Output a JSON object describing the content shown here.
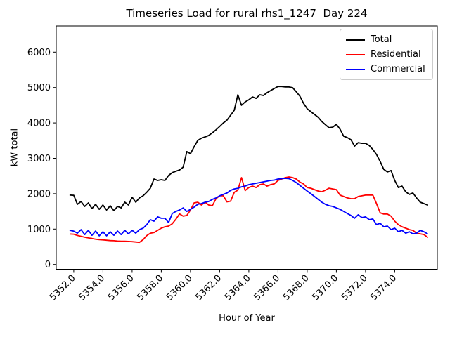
{
  "chart_data": {
    "type": "line",
    "title": "Timeseries Load for rural rhs1_1247  Day 224",
    "xlabel": "Hour of Year",
    "ylabel": "kW total",
    "grid": false,
    "legend_position": "upper right",
    "xlim": [
      5350.8,
      5376.92
    ],
    "ylim": [
      -135,
      6740
    ],
    "x_ticks": [
      5352,
      5354,
      5356,
      5358,
      5360,
      5362,
      5364,
      5366,
      5368,
      5370,
      5372,
      5374
    ],
    "x_tick_labels": [
      "5352.0",
      "5354.0",
      "5356.0",
      "5358.0",
      "5360.0",
      "5362.0",
      "5364.0",
      "5366.0",
      "5368.0",
      "5370.0",
      "5372.0",
      "5374.0"
    ],
    "y_ticks": [
      0,
      1000,
      2000,
      3000,
      4000,
      5000,
      6000
    ],
    "y_tick_labels": [
      "0",
      "1000",
      "2000",
      "3000",
      "4000",
      "5000",
      "6000"
    ],
    "x_start": 5351.75,
    "x_step": 0.25,
    "series": [
      {
        "name": "Total",
        "color": "#000000",
        "values": [
          1960,
          1955,
          1700,
          1780,
          1640,
          1740,
          1580,
          1700,
          1560,
          1680,
          1540,
          1660,
          1520,
          1640,
          1600,
          1760,
          1680,
          1900,
          1760,
          1880,
          1940,
          2040,
          2155,
          2415,
          2375,
          2395,
          2375,
          2515,
          2595,
          2635,
          2670,
          2750,
          3190,
          3130,
          3330,
          3505,
          3570,
          3605,
          3645,
          3720,
          3805,
          3900,
          4000,
          4080,
          4220,
          4360,
          4795,
          4500,
          4595,
          4655,
          4735,
          4695,
          4795,
          4775,
          4855,
          4915,
          4975,
          5030,
          5030,
          5015,
          5015,
          4995,
          4880,
          4755,
          4555,
          4400,
          4320,
          4240,
          4160,
          4040,
          3950,
          3865,
          3880,
          3960,
          3825,
          3625,
          3585,
          3525,
          3345,
          3445,
          3425,
          3425,
          3365,
          3250,
          3110,
          2910,
          2690,
          2615,
          2655,
          2375,
          2175,
          2215,
          2055,
          1980,
          2020,
          1880,
          1760,
          1720,
          1680
        ]
      },
      {
        "name": "Residential",
        "color": "#ff0000",
        "values": [
          860,
          855,
          820,
          795,
          770,
          750,
          735,
          715,
          700,
          695,
          685,
          675,
          670,
          660,
          655,
          655,
          650,
          645,
          635,
          625,
          700,
          815,
          880,
          900,
          965,
          1025,
          1065,
          1085,
          1150,
          1280,
          1430,
          1365,
          1385,
          1540,
          1740,
          1760,
          1680,
          1760,
          1680,
          1660,
          1860,
          1940,
          1940,
          1770,
          1790,
          2040,
          2100,
          2455,
          2090,
          2175,
          2215,
          2175,
          2255,
          2275,
          2215,
          2255,
          2280,
          2375,
          2415,
          2455,
          2475,
          2455,
          2415,
          2330,
          2275,
          2175,
          2155,
          2115,
          2075,
          2055,
          2100,
          2155,
          2135,
          2115,
          1960,
          1920,
          1880,
          1860,
          1860,
          1920,
          1940,
          1960,
          1960,
          1960,
          1720,
          1460,
          1425,
          1425,
          1365,
          1225,
          1125,
          1065,
          1025,
          985,
          965,
          885,
          865,
          845,
          770
        ]
      },
      {
        "name": "Commercial",
        "color": "#0000ff",
        "values": [
          965,
          940,
          885,
          985,
          845,
          965,
          825,
          945,
          810,
          925,
          810,
          925,
          825,
          945,
          845,
          965,
          865,
          965,
          885,
          985,
          1025,
          1125,
          1265,
          1225,
          1345,
          1305,
          1305,
          1185,
          1440,
          1500,
          1540,
          1600,
          1500,
          1560,
          1620,
          1700,
          1720,
          1760,
          1780,
          1840,
          1880,
          1940,
          1980,
          2020,
          2095,
          2135,
          2155,
          2195,
          2215,
          2255,
          2275,
          2295,
          2315,
          2335,
          2355,
          2375,
          2385,
          2415,
          2425,
          2435,
          2425,
          2375,
          2315,
          2235,
          2155,
          2075,
          2000,
          1920,
          1840,
          1760,
          1700,
          1660,
          1640,
          1600,
          1560,
          1500,
          1440,
          1385,
          1305,
          1405,
          1325,
          1345,
          1265,
          1285,
          1125,
          1165,
          1065,
          1085,
          985,
          1025,
          925,
          965,
          885,
          925,
          865,
          885,
          965,
          925,
          865
        ]
      }
    ]
  }
}
